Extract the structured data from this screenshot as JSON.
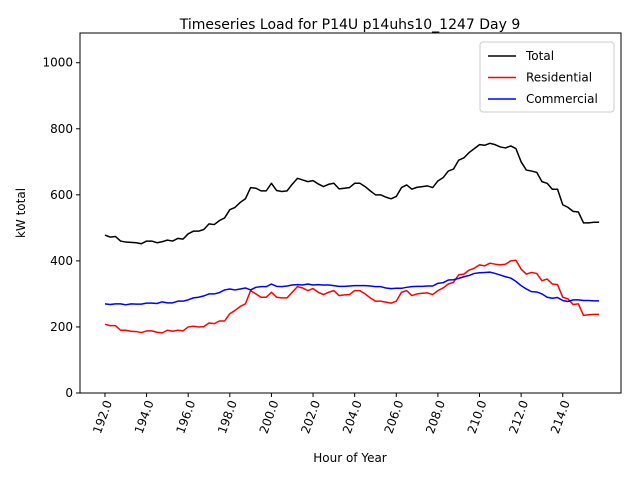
{
  "chart_data": {
    "type": "line",
    "title": "Timeseries Load for P14U p14uhs10_1247  Day 9",
    "xlabel": "Hour of Year",
    "ylabel": "kW total",
    "xlim": [
      190.8,
      216.8
    ],
    "ylim": [
      0,
      1090
    ],
    "xticks": [
      192.0,
      194.0,
      196.0,
      198.0,
      200.0,
      202.0,
      204.0,
      206.0,
      208.0,
      210.0,
      212.0,
      214.0
    ],
    "xtick_labels": [
      "192.0",
      "194.0",
      "196.0",
      "198.0",
      "200.0",
      "202.0",
      "204.0",
      "206.0",
      "208.0",
      "210.0",
      "212.0",
      "214.0"
    ],
    "yticks": [
      0,
      200,
      400,
      600,
      800,
      1000
    ],
    "ytick_labels": [
      "0",
      "200",
      "400",
      "600",
      "800",
      "1000"
    ],
    "legend_position": "top-right",
    "x": [
      192.0,
      192.25,
      192.5,
      192.75,
      193.0,
      193.25,
      193.5,
      193.75,
      194.0,
      194.25,
      194.5,
      194.75,
      195.0,
      195.25,
      195.5,
      195.75,
      196.0,
      196.25,
      196.5,
      196.75,
      197.0,
      197.25,
      197.5,
      197.75,
      198.0,
      198.25,
      198.5,
      198.75,
      199.0,
      199.25,
      199.5,
      199.75,
      200.0,
      200.25,
      200.5,
      200.75,
      201.0,
      201.25,
      201.5,
      201.75,
      202.0,
      202.25,
      202.5,
      202.75,
      203.0,
      203.25,
      203.5,
      203.75,
      204.0,
      204.25,
      204.5,
      204.75,
      205.0,
      205.25,
      205.5,
      205.75,
      206.0,
      206.25,
      206.5,
      206.75,
      207.0,
      207.25,
      207.5,
      207.75,
      208.0,
      208.25,
      208.5,
      208.75,
      209.0,
      209.25,
      209.5,
      209.75,
      210.0,
      210.25,
      210.5,
      210.75,
      211.0,
      211.25,
      211.5,
      211.75,
      212.0,
      212.25,
      212.5,
      212.75,
      213.0,
      213.25,
      213.5,
      213.75,
      214.0,
      214.25,
      214.5,
      214.75,
      215.0,
      215.25,
      215.5,
      215.75
    ],
    "series": [
      {
        "name": "Total",
        "color": "#000000",
        "values": [
          478,
          472,
          474,
          460,
          457,
          456,
          455,
          452,
          460,
          460,
          455,
          458,
          463,
          460,
          468,
          466,
          482,
          490,
          490,
          495,
          512,
          510,
          522,
          530,
          555,
          562,
          577,
          588,
          622,
          620,
          612,
          612,
          635,
          613,
          610,
          612,
          632,
          650,
          645,
          640,
          643,
          633,
          625,
          632,
          635,
          618,
          620,
          622,
          635,
          635,
          625,
          612,
          600,
          600,
          593,
          588,
          595,
          622,
          630,
          617,
          623,
          625,
          627,
          622,
          642,
          652,
          672,
          678,
          705,
          712,
          728,
          740,
          752,
          750,
          756,
          752,
          745,
          742,
          748,
          740,
          700,
          675,
          672,
          668,
          640,
          635,
          617,
          617,
          570,
          562,
          550,
          548,
          515,
          515,
          517,
          517
        ]
      },
      {
        "name": "Residential",
        "color": "#ff0000",
        "values": [
          208,
          204,
          204,
          190,
          190,
          187,
          186,
          183,
          188,
          188,
          184,
          182,
          190,
          187,
          190,
          188,
          200,
          202,
          200,
          201,
          212,
          210,
          218,
          218,
          240,
          250,
          262,
          270,
          310,
          300,
          290,
          290,
          305,
          290,
          288,
          288,
          305,
          322,
          318,
          310,
          316,
          305,
          298,
          305,
          310,
          295,
          297,
          298,
          310,
          310,
          300,
          288,
          278,
          278,
          275,
          272,
          278,
          305,
          310,
          295,
          300,
          302,
          303,
          298,
          310,
          318,
          330,
          335,
          358,
          360,
          372,
          378,
          388,
          385,
          393,
          390,
          388,
          390,
          400,
          402,
          375,
          360,
          365,
          362,
          340,
          345,
          330,
          328,
          290,
          285,
          268,
          270,
          235,
          237,
          238,
          238
        ]
      },
      {
        "name": "Commercial",
        "color": "#0000ff",
        "values": [
          270,
          268,
          270,
          270,
          267,
          270,
          269,
          269,
          272,
          272,
          271,
          276,
          273,
          273,
          278,
          278,
          282,
          288,
          290,
          294,
          300,
          300,
          304,
          312,
          315,
          312,
          315,
          318,
          312,
          320,
          322,
          322,
          330,
          323,
          322,
          324,
          327,
          328,
          327,
          330,
          327,
          328,
          327,
          327,
          325,
          323,
          323,
          324,
          325,
          325,
          325,
          324,
          322,
          322,
          318,
          316,
          317,
          317,
          320,
          322,
          323,
          323,
          324,
          324,
          332,
          334,
          342,
          343,
          347,
          352,
          356,
          362,
          364,
          365,
          366,
          362,
          357,
          352,
          348,
          338,
          325,
          315,
          307,
          306,
          300,
          290,
          287,
          289,
          280,
          277,
          282,
          282,
          280,
          280,
          279,
          279
        ]
      }
    ]
  }
}
